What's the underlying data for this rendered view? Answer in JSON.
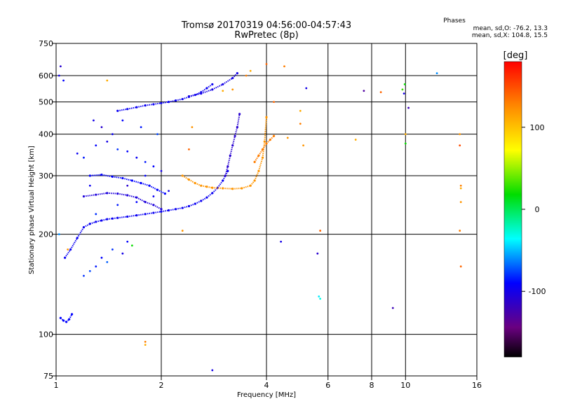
{
  "chart_data": {
    "type": "scatter",
    "title": "Tromsø 20170319 04:56:00-04:57:43",
    "subtitle": "RwPretec (8p)",
    "xlabel": "Frequency [MHz]",
    "ylabel": "Stationary phase Virtual Height [km]",
    "x_scale": "log",
    "y_scale": "log",
    "xlim": [
      1,
      16
    ],
    "ylim": [
      75,
      750
    ],
    "x_ticks": [
      1,
      2,
      4,
      6,
      8,
      10,
      16
    ],
    "x_tick_labels": [
      "1",
      "2",
      "4",
      "6",
      "8",
      "10",
      "16"
    ],
    "y_ticks": [
      75,
      100,
      200,
      300,
      400,
      500,
      600,
      750
    ],
    "y_tick_labels": [
      "75",
      "100",
      "200",
      "300",
      "400",
      "500",
      "600",
      "750"
    ],
    "grid": true,
    "phases_box": {
      "title": "Phases",
      "line1": "mean, sd,O: -76.2, 13.3",
      "line2": "mean, sd,X: 104.8, 15.5"
    },
    "colorbar": {
      "label": "[deg]",
      "range": [
        -180,
        180
      ],
      "ticks": [
        -100,
        0,
        100
      ],
      "tick_labels": [
        "-100",
        "0",
        "100"
      ]
    },
    "traces": [
      {
        "x": [
          1.03,
          1.05,
          1.07,
          1.09,
          1.11
        ],
        "y": [
          112,
          110,
          109,
          111,
          115
        ],
        "phase": -90
      },
      {
        "x": [
          1.06,
          1.1,
          1.15,
          1.2,
          1.25,
          1.3,
          1.35,
          1.4,
          1.45,
          1.5,
          1.6,
          1.7,
          1.8,
          1.9,
          2.0,
          2.1,
          2.2,
          2.3,
          2.4,
          2.5,
          2.6,
          2.7,
          2.8,
          2.9,
          3.0,
          3.1
        ],
        "y": [
          170,
          180,
          195,
          210,
          215,
          218,
          220,
          222,
          223,
          224,
          226,
          228,
          230,
          232,
          234,
          236,
          238,
          240,
          243,
          247,
          252,
          258,
          266,
          276,
          290,
          310
        ],
        "phase": -95
      },
      {
        "x": [
          1.2,
          1.3,
          1.4,
          1.5,
          1.6,
          1.7,
          1.8,
          1.9,
          2.0
        ],
        "y": [
          260,
          263,
          266,
          265,
          262,
          258,
          250,
          245,
          238
        ],
        "phase": -105
      },
      {
        "x": [
          1.25,
          1.35,
          1.45,
          1.55,
          1.65,
          1.75,
          1.85,
          1.95,
          2.05
        ],
        "y": [
          300,
          302,
          298,
          295,
          290,
          285,
          280,
          272,
          265
        ],
        "phase": -90
      },
      {
        "x": [
          1.5,
          1.6,
          1.7,
          1.8,
          1.9,
          2.0,
          2.1,
          2.2,
          2.3,
          2.4,
          2.5,
          2.6,
          2.7,
          2.8
        ],
        "y": [
          470,
          476,
          482,
          488,
          492,
          496,
          500,
          505,
          510,
          518,
          525,
          535,
          550,
          565
        ],
        "phase": -95
      },
      {
        "x": [
          2.4,
          2.6,
          2.8,
          3.0,
          3.2,
          3.3
        ],
        "y": [
          520,
          530,
          545,
          565,
          590,
          610
        ],
        "phase": -100
      },
      {
        "x": [
          3.05,
          3.1,
          3.15,
          3.2,
          3.25,
          3.3,
          3.35
        ],
        "y": [
          300,
          320,
          345,
          370,
          395,
          420,
          460
        ],
        "phase": -110
      },
      {
        "x": [
          2.3,
          2.4,
          2.5,
          2.6,
          2.7,
          2.8,
          3.0,
          3.2,
          3.4,
          3.6,
          3.7,
          3.8,
          3.9,
          3.95,
          4.0
        ],
        "y": [
          300,
          292,
          285,
          280,
          278,
          276,
          275,
          274,
          275,
          280,
          290,
          310,
          340,
          380,
          450
        ],
        "phase": 120
      },
      {
        "x": [
          3.7,
          3.8,
          3.9,
          4.0,
          4.1,
          4.2
        ],
        "y": [
          330,
          345,
          360,
          375,
          385,
          395
        ],
        "phase": 130
      }
    ],
    "scatter_points": [
      {
        "x": 1.02,
        "y": 600,
        "phase": -100
      },
      {
        "x": 1.03,
        "y": 640,
        "phase": -110
      },
      {
        "x": 1.05,
        "y": 580,
        "phase": -90
      },
      {
        "x": 1.02,
        "y": 200,
        "phase": -60
      },
      {
        "x": 1.08,
        "y": 180,
        "phase": 120
      },
      {
        "x": 1.2,
        "y": 150,
        "phase": -80
      },
      {
        "x": 1.25,
        "y": 155,
        "phase": -75
      },
      {
        "x": 1.3,
        "y": 160,
        "phase": -85
      },
      {
        "x": 1.35,
        "y": 170,
        "phase": -90
      },
      {
        "x": 1.4,
        "y": 165,
        "phase": -70
      },
      {
        "x": 1.45,
        "y": 180,
        "phase": -80
      },
      {
        "x": 1.55,
        "y": 175,
        "phase": -100
      },
      {
        "x": 1.6,
        "y": 190,
        "phase": -90
      },
      {
        "x": 1.65,
        "y": 185,
        "phase": 20
      },
      {
        "x": 1.15,
        "y": 350,
        "phase": -95
      },
      {
        "x": 1.2,
        "y": 340,
        "phase": -85
      },
      {
        "x": 1.3,
        "y": 370,
        "phase": -90
      },
      {
        "x": 1.4,
        "y": 380,
        "phase": -100
      },
      {
        "x": 1.5,
        "y": 360,
        "phase": -80
      },
      {
        "x": 1.6,
        "y": 355,
        "phase": -90
      },
      {
        "x": 1.7,
        "y": 340,
        "phase": -95
      },
      {
        "x": 1.8,
        "y": 330,
        "phase": -85
      },
      {
        "x": 1.9,
        "y": 320,
        "phase": -90
      },
      {
        "x": 1.35,
        "y": 420,
        "phase": -110
      },
      {
        "x": 1.45,
        "y": 400,
        "phase": -95
      },
      {
        "x": 1.28,
        "y": 440,
        "phase": -100
      },
      {
        "x": 1.55,
        "y": 440,
        "phase": -90
      },
      {
        "x": 1.75,
        "y": 420,
        "phase": -85
      },
      {
        "x": 1.95,
        "y": 400,
        "phase": -75
      },
      {
        "x": 1.3,
        "y": 230,
        "phase": -80
      },
      {
        "x": 1.5,
        "y": 245,
        "phase": -85
      },
      {
        "x": 1.7,
        "y": 250,
        "phase": -90
      },
      {
        "x": 1.9,
        "y": 260,
        "phase": -95
      },
      {
        "x": 2.1,
        "y": 270,
        "phase": -100
      },
      {
        "x": 1.6,
        "y": 280,
        "phase": -110
      },
      {
        "x": 1.8,
        "y": 300,
        "phase": -90
      },
      {
        "x": 2.0,
        "y": 310,
        "phase": -100
      },
      {
        "x": 1.25,
        "y": 280,
        "phase": -95
      },
      {
        "x": 1.4,
        "y": 580,
        "phase": 110
      },
      {
        "x": 1.8,
        "y": 93,
        "phase": 110
      },
      {
        "x": 1.8,
        "y": 95,
        "phase": 130
      },
      {
        "x": 2.8,
        "y": 78,
        "phase": -100
      },
      {
        "x": 2.3,
        "y": 205,
        "phase": 120
      },
      {
        "x": 2.45,
        "y": 420,
        "phase": 120
      },
      {
        "x": 2.4,
        "y": 360,
        "phase": 140
      },
      {
        "x": 3.0,
        "y": 540,
        "phase": 110
      },
      {
        "x": 3.2,
        "y": 545,
        "phase": 120
      },
      {
        "x": 3.5,
        "y": 600,
        "phase": 130
      },
      {
        "x": 3.6,
        "y": 620,
        "phase": 110
      },
      {
        "x": 4.0,
        "y": 650,
        "phase": 140
      },
      {
        "x": 4.5,
        "y": 640,
        "phase": 130
      },
      {
        "x": 4.4,
        "y": 190,
        "phase": -100
      },
      {
        "x": 4.2,
        "y": 500,
        "phase": 140
      },
      {
        "x": 4.6,
        "y": 390,
        "phase": 120
      },
      {
        "x": 5.0,
        "y": 430,
        "phase": 130
      },
      {
        "x": 5.1,
        "y": 370,
        "phase": 120
      },
      {
        "x": 5.2,
        "y": 550,
        "phase": -100
      },
      {
        "x": 5.6,
        "y": 175,
        "phase": -110
      },
      {
        "x": 5.7,
        "y": 205,
        "phase": 140
      },
      {
        "x": 5.65,
        "y": 130,
        "phase": -40
      },
      {
        "x": 5.7,
        "y": 128,
        "phase": -30
      },
      {
        "x": 5.0,
        "y": 470,
        "phase": 110
      },
      {
        "x": 7.2,
        "y": 385,
        "phase": 110
      },
      {
        "x": 7.6,
        "y": 540,
        "phase": -130
      },
      {
        "x": 8.5,
        "y": 535,
        "phase": 140
      },
      {
        "x": 9.2,
        "y": 120,
        "phase": -120
      },
      {
        "x": 9.8,
        "y": 545,
        "phase": 30
      },
      {
        "x": 9.9,
        "y": 530,
        "phase": -100
      },
      {
        "x": 10.0,
        "y": 400,
        "phase": 110
      },
      {
        "x": 10.0,
        "y": 375,
        "phase": 20
      },
      {
        "x": 9.95,
        "y": 565,
        "phase": 20
      },
      {
        "x": 10.2,
        "y": 480,
        "phase": -120
      },
      {
        "x": 12.3,
        "y": 610,
        "phase": -60
      },
      {
        "x": 14.3,
        "y": 400,
        "phase": 120
      },
      {
        "x": 14.3,
        "y": 370,
        "phase": 150
      },
      {
        "x": 14.4,
        "y": 280,
        "phase": 130
      },
      {
        "x": 14.4,
        "y": 275,
        "phase": 110
      },
      {
        "x": 14.4,
        "y": 250,
        "phase": 120
      },
      {
        "x": 14.3,
        "y": 205,
        "phase": 130
      },
      {
        "x": 14.4,
        "y": 160,
        "phase": 140
      }
    ]
  }
}
